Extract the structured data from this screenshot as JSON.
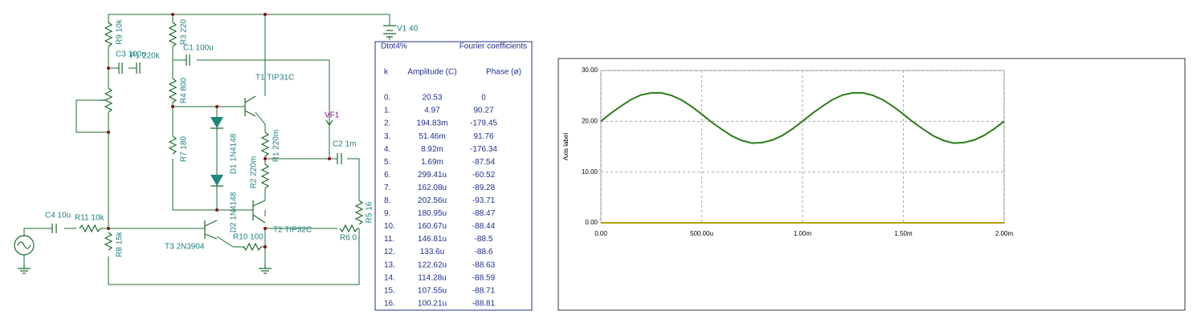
{
  "diagram": {
    "labels": [
      "R9 10k",
      "C3 100n",
      "P1 220k",
      "R3 220",
      "C1 100u",
      "T1 TIP31C",
      "R4 800",
      "VF1",
      "R7 180",
      "D1 1N4148",
      "R1 220m",
      "R2 220m",
      "C2 1m",
      "D2 1N4148",
      "R5 16",
      "C4 10u",
      "R11 10k",
      "T2 TIP32C",
      "R6 0",
      "T3 2N3904",
      "R10 100",
      "R8 15k",
      "V1 40"
    ]
  },
  "table": {
    "title": "Dtot4%",
    "subtitle": "Fourier coefficients",
    "columns": [
      "k",
      "Amplitude (C)",
      "Phase (ø)"
    ],
    "rows": [
      [
        "0.",
        "20.53",
        "0"
      ],
      [
        "1.",
        "4.97",
        "90.27"
      ],
      [
        "2.",
        "194.83m",
        "-179.45"
      ],
      [
        "3.",
        "51.46m",
        "91.76"
      ],
      [
        "4.",
        "8.92m",
        "-176.34"
      ],
      [
        "5.",
        "1.69m",
        "-87.54"
      ],
      [
        "6.",
        "299.41u",
        "-60.52"
      ],
      [
        "7.",
        "162.08u",
        "-89.28"
      ],
      [
        "8.",
        "202.56u",
        "-93.71"
      ],
      [
        "9.",
        "180.95u",
        "-88.47"
      ],
      [
        "10.",
        "160.67u",
        "-88.44"
      ],
      [
        "11.",
        "146.81u",
        "-88.5"
      ],
      [
        "12.",
        "133.6u",
        "-88.6"
      ],
      [
        "13.",
        "122.62u",
        "-88.63"
      ],
      [
        "14.",
        "114.28u",
        "-88.59"
      ],
      [
        "15.",
        "107.55u",
        "-88.71"
      ],
      [
        "16.",
        "100.21u",
        "-88.81"
      ]
    ]
  },
  "chart_data": {
    "type": "line",
    "y_label": "Axis label",
    "xlim": [
      0,
      0.002
    ],
    "ylim": [
      0,
      30
    ],
    "xticks": [
      {
        "value": 0,
        "label": "0.00"
      },
      {
        "value": 0.0005,
        "label": "500.00u"
      },
      {
        "value": 0.001,
        "label": "1.00m"
      },
      {
        "value": 0.0015,
        "label": "1.50m"
      },
      {
        "value": 0.002,
        "label": "2.00m"
      }
    ],
    "yticks": [
      {
        "value": 0,
        "label": "0.00"
      },
      {
        "value": 10,
        "label": "10.00"
      },
      {
        "value": 20,
        "label": "20.00"
      },
      {
        "value": 30,
        "label": "30.00"
      }
    ],
    "grid": true,
    "series": [
      {
        "color": "#2a7d14",
        "x": [
          0,
          5e-05,
          0.0001,
          0.00015,
          0.0002,
          0.00025,
          0.0003,
          0.00035,
          0.0004,
          0.00045,
          0.0005,
          0.00055,
          0.0006,
          0.00065,
          0.0007,
          0.00075,
          0.0008,
          0.00085,
          0.0009,
          0.00095,
          0.001,
          0.00105,
          0.0011,
          0.00115,
          0.0012,
          0.00125,
          0.0013,
          0.00135,
          0.0014,
          0.00145,
          0.0015,
          0.00155,
          0.0016,
          0.00165,
          0.0017,
          0.00175,
          0.0018,
          0.00185,
          0.0019,
          0.00195,
          0.002
        ],
        "values": [
          20.0,
          21.6,
          23.0,
          24.3,
          25.2,
          25.6,
          25.6,
          25.1,
          24.2,
          22.9,
          21.4,
          19.8,
          18.4,
          17.1,
          16.2,
          15.7,
          15.8,
          16.3,
          17.2,
          18.5,
          20.0,
          21.6,
          23.0,
          24.3,
          25.2,
          25.6,
          25.6,
          25.1,
          24.2,
          22.9,
          21.4,
          19.8,
          18.4,
          17.1,
          16.2,
          15.7,
          15.8,
          16.3,
          17.2,
          18.5,
          20.0
        ]
      },
      {
        "color": "#b8a000",
        "x": [
          0,
          0.002
        ],
        "values": [
          0,
          0
        ]
      }
    ]
  }
}
